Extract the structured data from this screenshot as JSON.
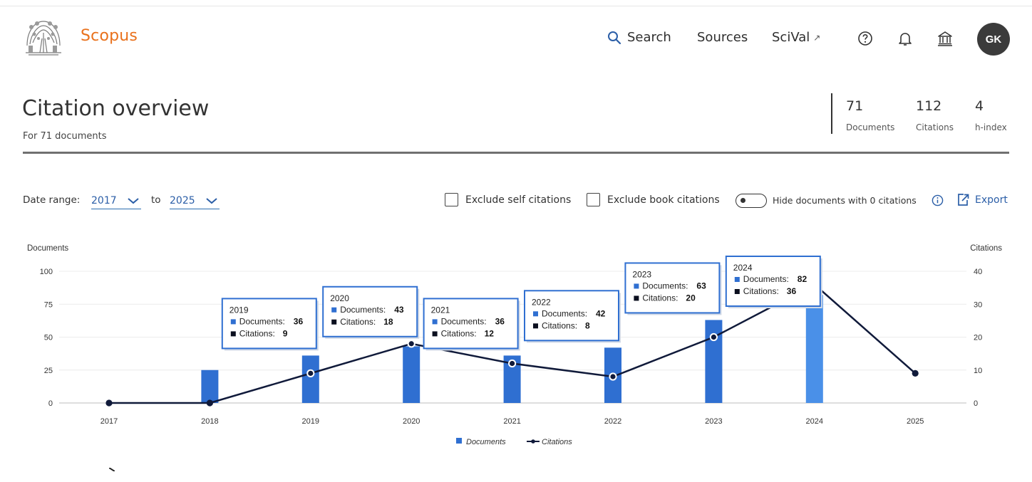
{
  "header": {
    "brand": "Scopus",
    "nav": {
      "search": "Search",
      "sources": "Sources",
      "scival": "SciVal",
      "scival_arrow": "↗"
    },
    "avatar_initials": "GK",
    "icons": [
      "search-icon",
      "help-icon",
      "bell-icon",
      "institution-icon",
      "external-link-icon"
    ]
  },
  "page": {
    "title": "Citation overview",
    "subtitle": "For 71 documents"
  },
  "metrics": [
    {
      "value": "71",
      "label": "Documents"
    },
    {
      "value": "112",
      "label": "Citations"
    },
    {
      "value": "4",
      "label": "h-index"
    }
  ],
  "controls": {
    "date_range_label": "Date range:",
    "from_year": "2017",
    "to_label": "to",
    "to_year": "2025",
    "exclude_self": "Exclude self citations",
    "exclude_book": "Exclude book citations",
    "hide_zero": "Hide documents with 0 citations",
    "export": "Export"
  },
  "colors": {
    "accent": "#2b5ea7",
    "brand": "#e9711c",
    "bar": "#2f6fd1",
    "bar_highlight": "#4a90e8",
    "line": "#101a3a"
  },
  "chart_data": {
    "type": "bar",
    "categories": [
      "2017",
      "2018",
      "2019",
      "2020",
      "2021",
      "2022",
      "2023",
      "2024",
      "2025"
    ],
    "series": [
      {
        "name": "Documents",
        "type": "bar",
        "axis": "left",
        "values": [
          0,
          25,
          36,
          43,
          36,
          42,
          63,
          82,
          null
        ]
      },
      {
        "name": "Citations",
        "type": "line",
        "axis": "right",
        "values": [
          0,
          0,
          9,
          18,
          12,
          8,
          20,
          36,
          9
        ]
      }
    ],
    "ylabel": "Documents",
    "y2label": "Citations",
    "ylim": [
      0,
      100
    ],
    "y2lim": [
      0,
      40
    ],
    "yticks": [
      0,
      25,
      50,
      75,
      100
    ],
    "y2ticks": [
      0,
      10,
      20,
      30,
      40
    ],
    "legend": {
      "position": "bottom-center",
      "items": [
        "Documents",
        "Citations"
      ]
    },
    "grid": true,
    "highlighted_category": "2024",
    "tooltips": [
      {
        "year": "2019",
        "documents_label": "Documents:",
        "documents": "36",
        "citations_label": "Citations:",
        "citations": "9"
      },
      {
        "year": "2020",
        "documents_label": "Documents:",
        "documents": "43",
        "citations_label": "Citations:",
        "citations": "18"
      },
      {
        "year": "2021",
        "documents_label": "Documents:",
        "documents": "36",
        "citations_label": "Citations:",
        "citations": "12"
      },
      {
        "year": "2022",
        "documents_label": "Documents:",
        "documents": "42",
        "citations_label": "Citations:",
        "citations": "8"
      },
      {
        "year": "2023",
        "documents_label": "Documents:",
        "documents": "63",
        "citations_label": "Citations:",
        "citations": "20"
      },
      {
        "year": "2024",
        "documents_label": "Documents:",
        "documents": "82",
        "citations_label": "Citations:",
        "citations": "36"
      }
    ]
  }
}
